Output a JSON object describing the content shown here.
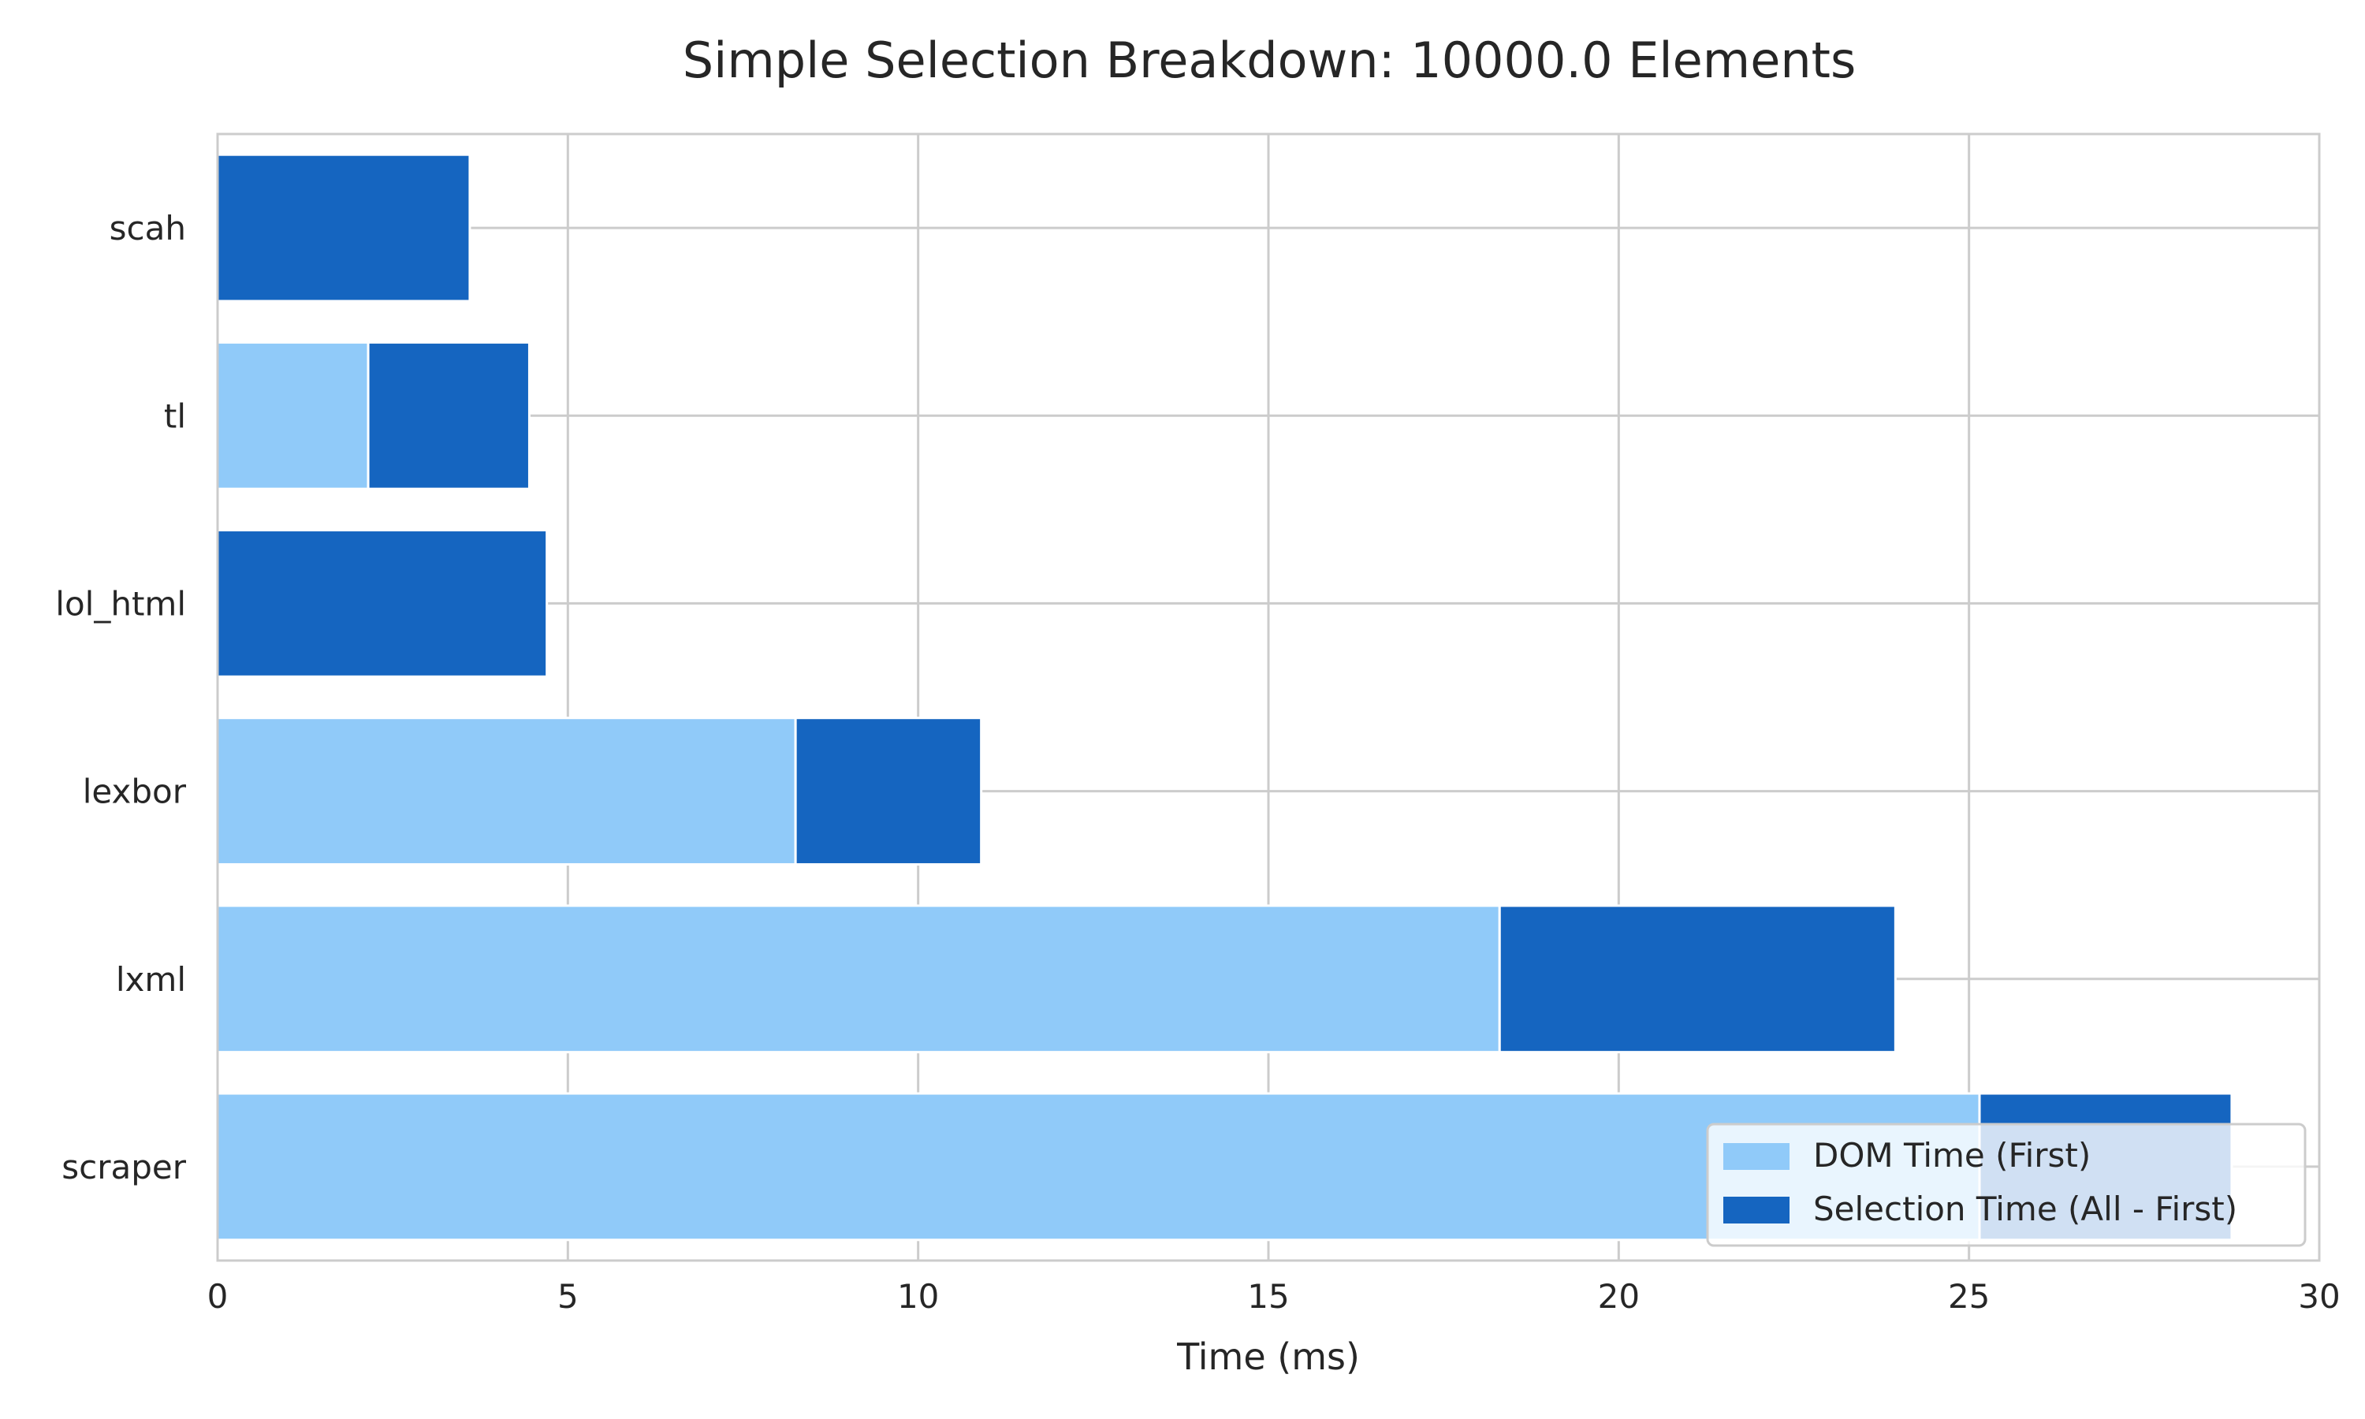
{
  "chart_data": {
    "type": "bar",
    "orientation": "horizontal",
    "stacked": true,
    "title": "Simple Selection Breakdown: 10000.0 Elements",
    "xlabel": "Time (ms)",
    "ylabel": "",
    "categories": [
      "scah",
      "tl",
      "lol_html",
      "lexbor",
      "lxml",
      "scraper"
    ],
    "series": [
      {
        "name": "DOM Time (First)",
        "color": "#90CAF9",
        "values": [
          0.0,
          2.15,
          0.0,
          8.25,
          18.3,
          25.15
        ]
      },
      {
        "name": "Selection Time (All - First)",
        "color": "#1565C0",
        "values": [
          3.6,
          2.3,
          4.7,
          2.65,
          5.65,
          3.6
        ]
      }
    ],
    "xlim": [
      0,
      30
    ],
    "xticks": [
      "0",
      "5",
      "10",
      "15",
      "20",
      "25",
      "30"
    ],
    "grid": true,
    "legend_position": "bottom-right"
  }
}
